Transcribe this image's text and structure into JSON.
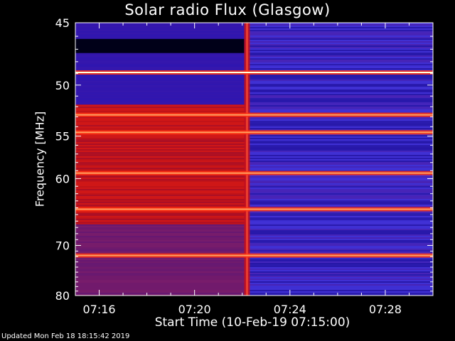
{
  "chart_data": {
    "type": "heatmap",
    "title": "Solar radio Flux (Glasgow)",
    "ylabel": "Frequency [MHz]",
    "xlabel": "Start Time (10-Feb-19 07:15:00)",
    "x_ticks": [
      "07:16",
      "07:20",
      "07:24",
      "07:28"
    ],
    "x_tick_minutes": [
      16,
      20,
      24,
      28
    ],
    "y_ticks": [
      45,
      50,
      55,
      60,
      70,
      80
    ],
    "ylim": [
      45,
      80
    ],
    "xlim_minutes": [
      15,
      30
    ],
    "y_scale": "reciprocal",
    "colormap": [
      "#00006e",
      "#3020d0",
      "#b01040",
      "#d01010",
      "#ff6020",
      "#ffffe0"
    ],
    "event_time_minutes": 22.2,
    "bright_bands_mhz": [
      48.9,
      52.8,
      54.6,
      59.3,
      64.2,
      71.8
    ],
    "background_before": "#c81414",
    "background_after": "#3a2ccc"
  },
  "footer": "Updated Mon Feb 18 18:15:42 2019"
}
